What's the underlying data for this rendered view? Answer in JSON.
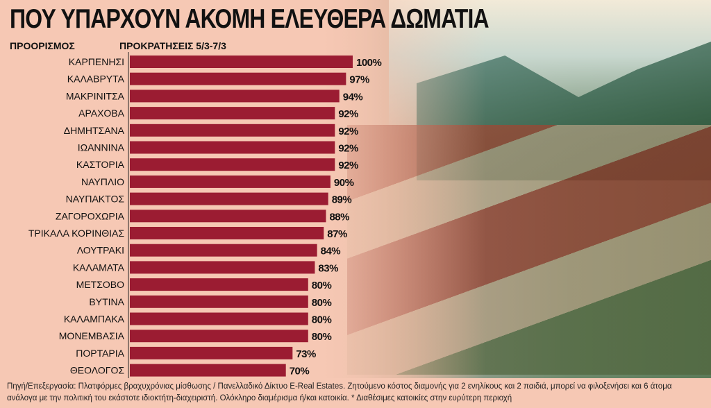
{
  "chart_data": {
    "type": "bar",
    "orientation": "horizontal",
    "title": "ΠΟΥ ΥΠΑΡΧΟΥΝ ΑΚΟΜΗ ΕΛΕΥΘΕΡΑ ΔΩΜΑΤΙΑ",
    "xlabel": "ΠΡΟΚΡΑΤΗΣΕΙΣ 5/3-7/3",
    "ylabel": "ΠΡΟΟΡΙΣΜΟΣ",
    "categories": [
      "ΚΑΡΠΕΝΗΣΙ",
      "ΚΑΛΑΒΡΥΤΑ",
      "ΜΑΚΡΙΝΙΤΣΑ",
      "ΑΡΑΧΟΒΑ",
      "ΔΗΜΗΤΣΑΝΑ",
      "ΙΩΑΝΝΙΝΑ",
      "ΚΑΣΤΟΡΙΑ",
      "ΝΑΥΠΛΙΟ",
      "ΝΑΥΠΑΚΤΟΣ",
      "ΖΑΓΟΡΟΧΩΡΙΑ",
      "ΤΡΙΚΑΛΑ ΚΟΡΙΝΘΙΑΣ",
      "ΛΟΥΤΡΑΚΙ",
      "ΚΑΛΑΜΑΤΑ",
      "ΜΕΤΣΟΒΟ",
      "ΒΥΤΙΝΑ",
      "ΚΑΛΑΜΠΑΚΑ",
      "ΜΟΝΕΜΒΑΣΙΑ",
      "ΠΟΡΤΑΡΙΑ",
      "ΘΕΟΛΟΓΟΣ"
    ],
    "values": [
      100,
      97,
      94,
      92,
      92,
      92,
      92,
      90,
      89,
      88,
      87,
      84,
      83,
      80,
      80,
      80,
      80,
      73,
      70
    ],
    "labels": [
      "100%",
      "97%",
      "94%",
      "92%",
      "92%",
      "92%",
      "92%",
      "90%",
      "89%",
      "88%",
      "87%",
      "84%",
      "83%",
      "80%",
      "80%",
      "80%",
      "80%",
      "73%",
      "70%"
    ],
    "xlim": [
      0,
      100
    ],
    "bar_color": "#9b1c32"
  },
  "footnote": "Πηγή/Επεξεργασία: Πλατφόρμες βραχυχρόνιας μίσθωσης / Πανελλαδικό Δίκτυο E-Real Estates. Ζητούμενο κόστος διαμονής για 2 ενηλίκους και 2 παιδιά, μπορεί να φιλοξενήσει και 6 άτομα ανάλογα με την πολιτική του εκάστοτε ιδιοκτήτη-διαχειριστή. Ολόκληρο διαμέρισμα ή/και κατοικία. * Διαθέσιμες κατοικίες στην ευρύτερη περιοχή"
}
